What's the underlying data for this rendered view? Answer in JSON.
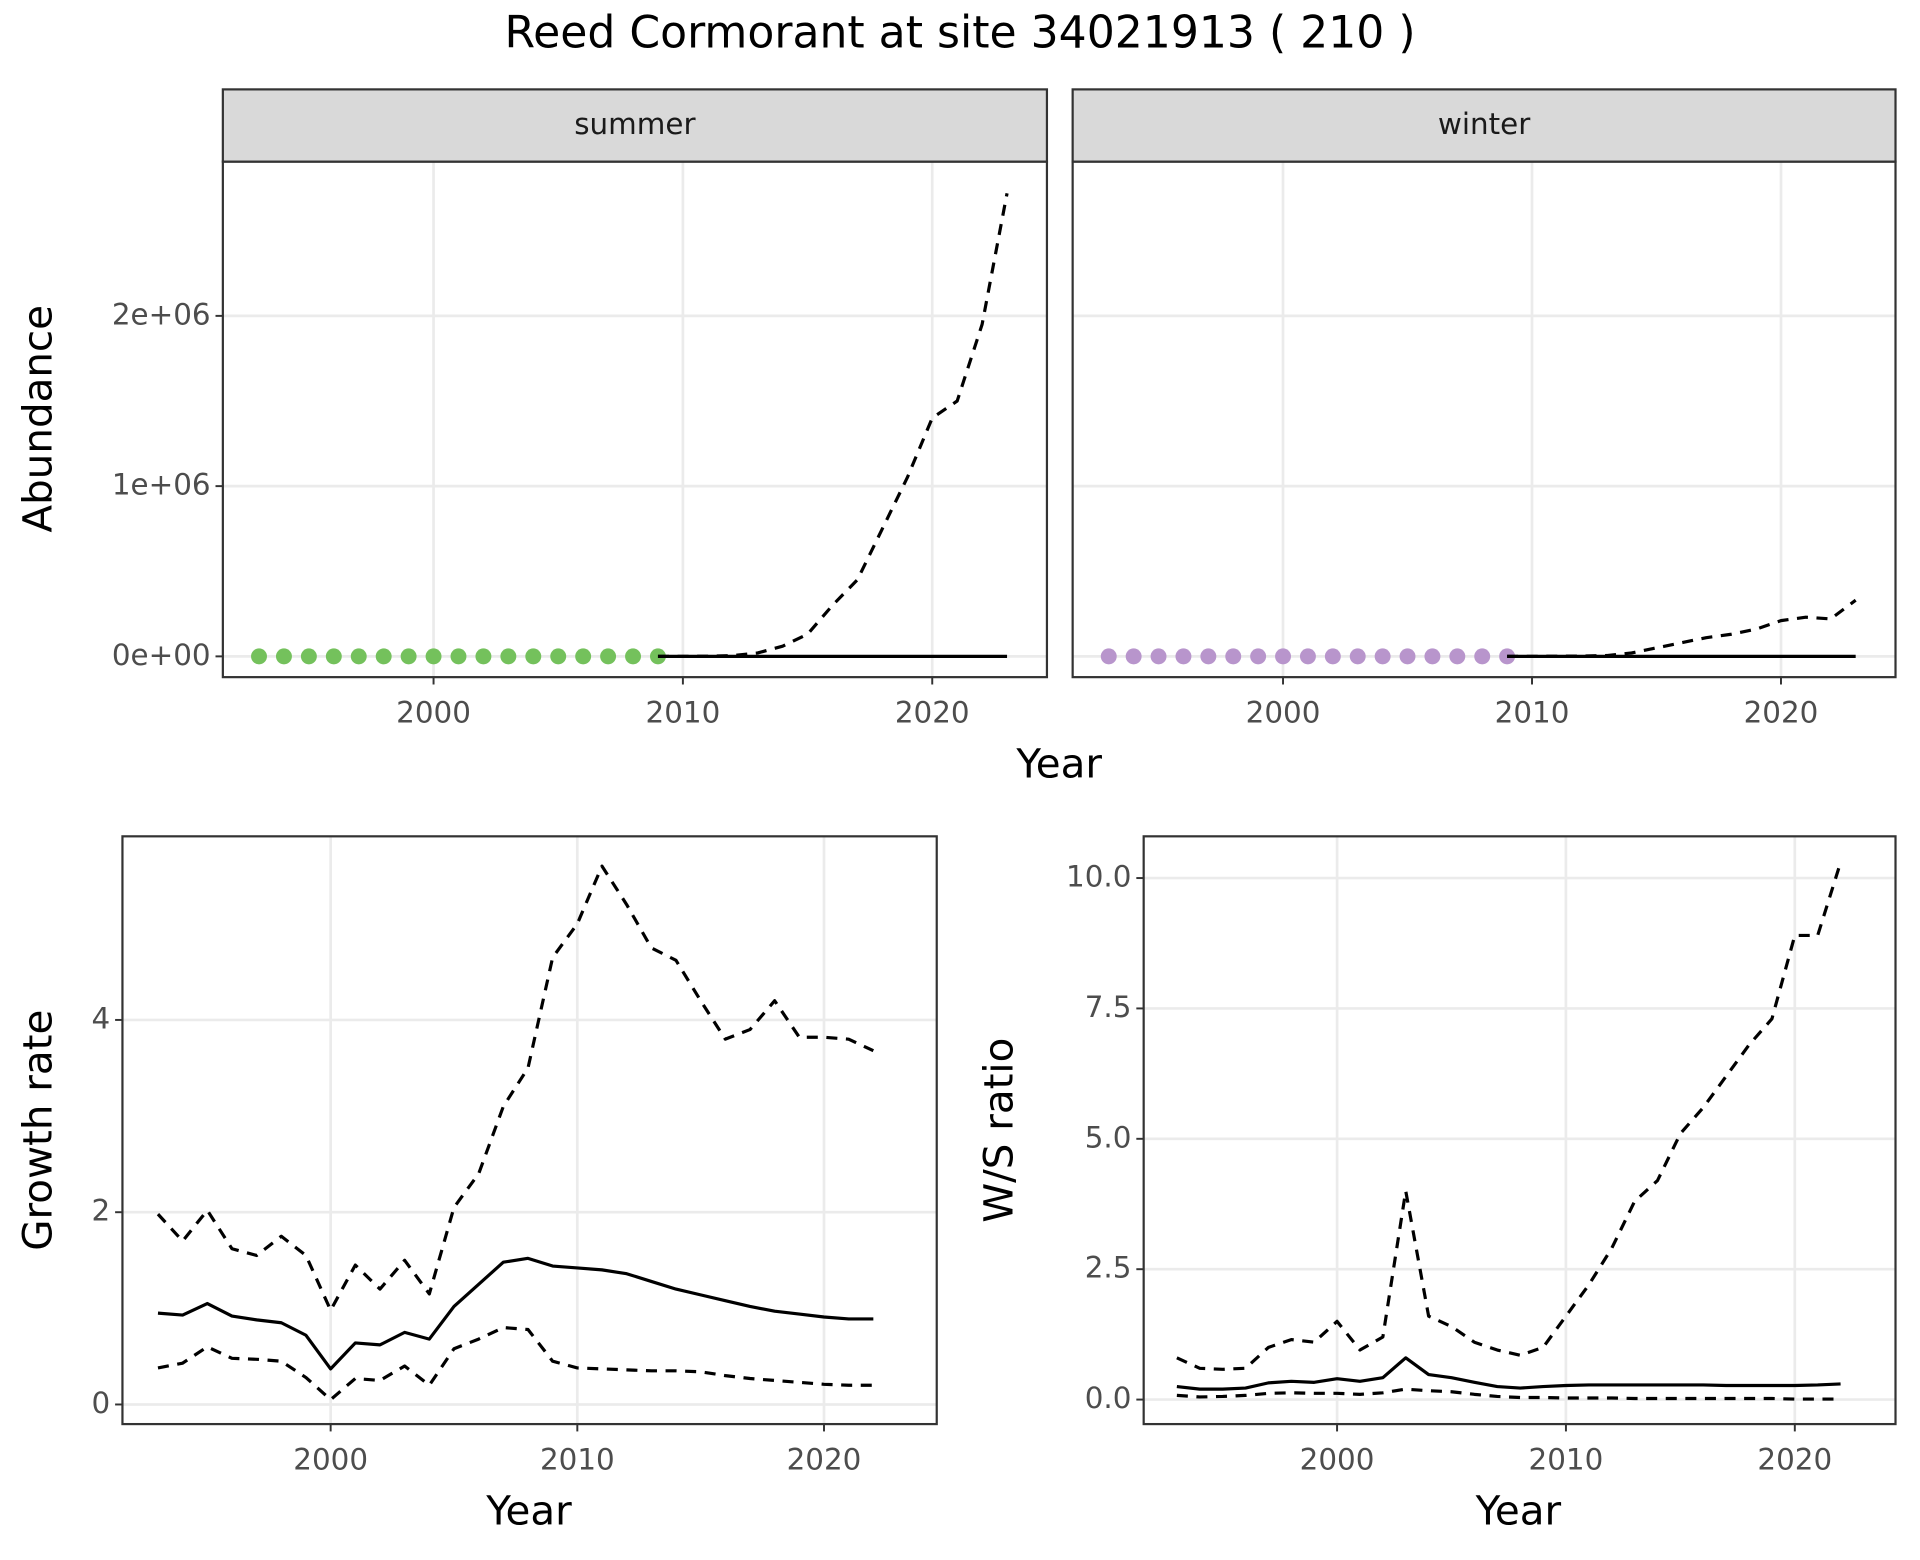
{
  "title": "Reed Cormorant at site 34021913 ( 210 )",
  "chart_data": [
    {
      "type": "line",
      "facet": "summer",
      "ylabel": "Abundance",
      "xlabel": "Year",
      "grid": true,
      "x": [
        1993,
        1994,
        1995,
        1996,
        1997,
        1998,
        1999,
        2000,
        2001,
        2002,
        2003,
        2004,
        2005,
        2006,
        2007,
        2008,
        2009,
        2010,
        2011,
        2012,
        2013,
        2014,
        2015,
        2016,
        2017,
        2018,
        2019,
        2020,
        2021,
        2022,
        2023
      ],
      "xlim": [
        1991.55,
        2024.6
      ],
      "xticks": [
        2000,
        2010,
        2020
      ],
      "ylim": [
        -122000,
        2906000
      ],
      "yticks": [
        {
          "value": 0,
          "label": "0e+00"
        },
        {
          "value": 1000000,
          "label": "1e+06"
        },
        {
          "value": 2000000,
          "label": "2e+06"
        }
      ],
      "series": [
        {
          "style": "points",
          "color": "#74c15c",
          "values": [
            0,
            0,
            0,
            0,
            0,
            0,
            0,
            0,
            0,
            0,
            0,
            0,
            0,
            0,
            0,
            0,
            0,
            null,
            null,
            null,
            null,
            null,
            null,
            null,
            null,
            null,
            null,
            null,
            null,
            null,
            null
          ]
        },
        {
          "style": "solid",
          "color": "#000000",
          "values": [
            null,
            null,
            null,
            null,
            null,
            null,
            null,
            null,
            null,
            null,
            null,
            null,
            null,
            null,
            null,
            null,
            0,
            0,
            0,
            0,
            0,
            0,
            0,
            0,
            0,
            0,
            0,
            0,
            0,
            0,
            0
          ]
        },
        {
          "style": "dashed",
          "color": "#000000",
          "values": [
            null,
            null,
            null,
            null,
            null,
            null,
            null,
            null,
            null,
            null,
            null,
            null,
            null,
            null,
            null,
            null,
            0,
            0,
            1000,
            5000,
            20000,
            60000,
            130000,
            300000,
            450000,
            750000,
            1050000,
            1400000,
            1500000,
            1950000,
            2720000
          ]
        }
      ]
    },
    {
      "type": "line",
      "facet": "winter",
      "grid": true,
      "x": [
        1993,
        1994,
        1995,
        1996,
        1997,
        1998,
        1999,
        2000,
        2001,
        2002,
        2003,
        2004,
        2005,
        2006,
        2007,
        2008,
        2009,
        2010,
        2011,
        2012,
        2013,
        2014,
        2015,
        2016,
        2017,
        2018,
        2019,
        2020,
        2021,
        2022,
        2023
      ],
      "xlim": [
        1991.55,
        2024.6
      ],
      "xticks": [
        2000,
        2010,
        2020
      ],
      "ylim": [
        -122000,
        2906000
      ],
      "yticks": [
        0,
        1000000,
        2000000
      ],
      "series": [
        {
          "style": "points",
          "color": "#b895cc",
          "values": [
            0,
            0,
            0,
            0,
            0,
            0,
            0,
            0,
            0,
            0,
            0,
            0,
            0,
            0,
            0,
            0,
            0,
            null,
            null,
            null,
            null,
            null,
            null,
            null,
            null,
            null,
            null,
            null,
            null,
            null,
            null
          ]
        },
        {
          "style": "solid",
          "color": "#000000",
          "values": [
            null,
            null,
            null,
            null,
            null,
            null,
            null,
            null,
            null,
            null,
            null,
            null,
            null,
            null,
            null,
            null,
            0,
            0,
            0,
            0,
            0,
            0,
            0,
            0,
            0,
            0,
            0,
            0,
            0,
            0,
            0
          ]
        },
        {
          "style": "dashed",
          "color": "#000000",
          "values": [
            null,
            null,
            null,
            null,
            null,
            null,
            null,
            null,
            null,
            null,
            null,
            null,
            null,
            null,
            null,
            null,
            0,
            0,
            1000,
            2000,
            5000,
            20000,
            50000,
            80000,
            110000,
            130000,
            160000,
            210000,
            230000,
            220000,
            330000
          ]
        }
      ]
    },
    {
      "type": "line",
      "ylabel": "Growth rate",
      "xlabel": "Year",
      "grid": true,
      "x": [
        1993,
        1994,
        1995,
        1996,
        1997,
        1998,
        1999,
        2000,
        2001,
        2002,
        2003,
        2004,
        2005,
        2006,
        2007,
        2008,
        2009,
        2010,
        2011,
        2012,
        2013,
        2014,
        2015,
        2016,
        2017,
        2018,
        2019,
        2020,
        2021,
        2022
      ],
      "xlim": [
        1991.56,
        2024.57
      ],
      "xticks": [
        2000,
        2010,
        2020
      ],
      "ylim": [
        -0.204,
        5.91
      ],
      "yticks": [
        0,
        2,
        4
      ],
      "series": [
        {
          "style": "solid",
          "color": "#000000",
          "values": [
            0.95,
            0.93,
            1.05,
            0.92,
            0.88,
            0.85,
            0.72,
            0.37,
            0.64,
            0.62,
            0.75,
            0.68,
            1.02,
            1.25,
            1.48,
            1.52,
            1.44,
            1.42,
            1.4,
            1.36,
            1.28,
            1.2,
            1.14,
            1.08,
            1.02,
            0.97,
            0.94,
            0.91,
            0.89,
            0.89
          ]
        },
        {
          "style": "dashed",
          "color": "#000000",
          "values": [
            1.98,
            1.7,
            2.02,
            1.62,
            1.55,
            1.75,
            1.55,
            0.98,
            1.45,
            1.2,
            1.5,
            1.15,
            2.05,
            2.4,
            3.1,
            3.5,
            4.65,
            5.0,
            5.6,
            5.2,
            4.75,
            4.62,
            4.2,
            3.8,
            3.9,
            4.2,
            3.82,
            3.82,
            3.8,
            3.68
          ]
        },
        {
          "style": "dashed",
          "color": "#000000",
          "values": [
            0.38,
            0.43,
            0.6,
            0.48,
            0.47,
            0.45,
            0.28,
            0.05,
            0.27,
            0.25,
            0.4,
            0.2,
            0.58,
            0.68,
            0.8,
            0.78,
            0.45,
            0.38,
            0.37,
            0.36,
            0.35,
            0.35,
            0.34,
            0.3,
            0.27,
            0.25,
            0.23,
            0.21,
            0.2,
            0.2
          ]
        }
      ]
    },
    {
      "type": "line",
      "ylabel": "W/S ratio",
      "xlabel": "Year",
      "grid": true,
      "x": [
        1993,
        1994,
        1995,
        1996,
        1997,
        1998,
        1999,
        2000,
        2001,
        2002,
        2003,
        2004,
        2005,
        2006,
        2007,
        2008,
        2009,
        2010,
        2011,
        2012,
        2013,
        2014,
        2015,
        2016,
        2017,
        2018,
        2019,
        2020,
        2021,
        2022
      ],
      "xlim": [
        1991.55,
        2024.4
      ],
      "xticks": [
        2000,
        2010,
        2020
      ],
      "ylim": [
        -0.47,
        10.8
      ],
      "yticks": [
        {
          "value": 0,
          "label": "0.0"
        },
        {
          "value": 2.5,
          "label": "2.5"
        },
        {
          "value": 5,
          "label": "5.0"
        },
        {
          "value": 7.5,
          "label": "7.5"
        },
        {
          "value": 10,
          "label": "10.0"
        }
      ],
      "series": [
        {
          "style": "solid",
          "color": "#000000",
          "values": [
            0.25,
            0.2,
            0.2,
            0.22,
            0.32,
            0.35,
            0.33,
            0.4,
            0.35,
            0.42,
            0.8,
            0.48,
            0.42,
            0.33,
            0.25,
            0.22,
            0.25,
            0.27,
            0.28,
            0.28,
            0.28,
            0.28,
            0.28,
            0.28,
            0.27,
            0.27,
            0.27,
            0.27,
            0.28,
            0.3
          ]
        },
        {
          "style": "dashed",
          "color": "#000000",
          "values": [
            0.8,
            0.6,
            0.58,
            0.6,
            1.0,
            1.15,
            1.1,
            1.5,
            0.95,
            1.2,
            4.0,
            1.6,
            1.4,
            1.1,
            0.95,
            0.85,
            1.0,
            1.6,
            2.2,
            2.9,
            3.8,
            4.2,
            5.1,
            5.6,
            6.2,
            6.8,
            7.3,
            8.9,
            8.9,
            10.3
          ]
        },
        {
          "style": "dashed",
          "color": "#000000",
          "values": [
            0.08,
            0.05,
            0.06,
            0.08,
            0.12,
            0.13,
            0.12,
            0.12,
            0.1,
            0.13,
            0.2,
            0.17,
            0.15,
            0.1,
            0.06,
            0.04,
            0.04,
            0.03,
            0.03,
            0.03,
            0.02,
            0.02,
            0.02,
            0.02,
            0.02,
            0.02,
            0.02,
            0.01,
            0.01,
            0.01
          ]
        }
      ]
    }
  ]
}
